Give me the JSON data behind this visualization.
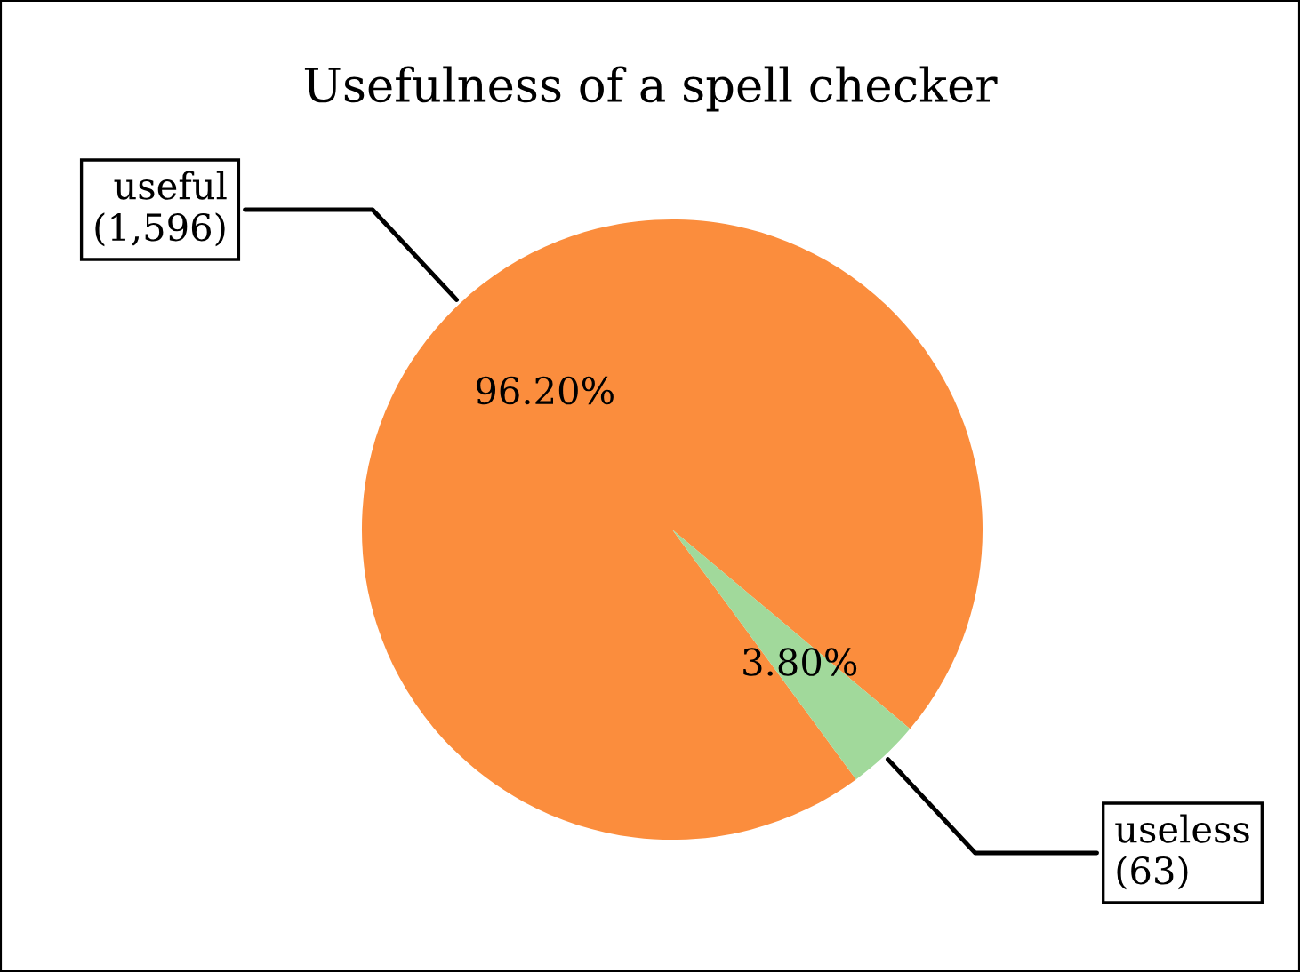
{
  "chart_data": {
    "type": "pie",
    "title": "Usefulness of a spell checker",
    "categories": [
      "useful\n(1,596)",
      "useless\n(63)"
    ],
    "values": [
      96.2,
      3.8
    ],
    "colors": [
      "#fb8d3d",
      "#a1d99b"
    ],
    "value_labels": [
      "96.20%",
      "3.80%"
    ],
    "legend": false
  }
}
